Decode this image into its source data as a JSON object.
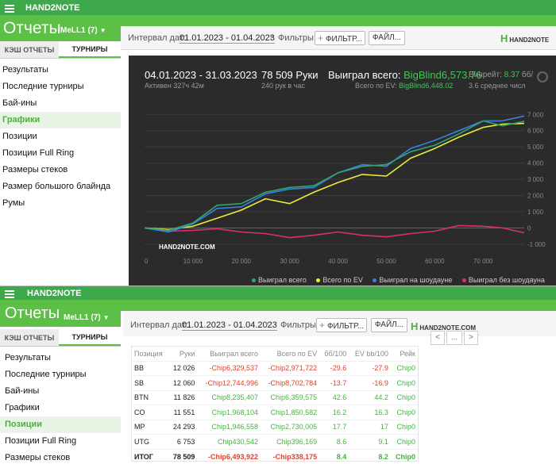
{
  "app_title": "HAND2NOTE",
  "section_title": "Отчеты",
  "profile": "MeLL1 (7)",
  "tabs": [
    "КЭШ ОТЧЕТЫ",
    "ТУРНИРЫ"
  ],
  "nav_items": [
    "Результаты",
    "Последние турниры",
    "Бай-ины",
    "Графики",
    "Позиции",
    "Позиции Full Ring",
    "Размеры стеков",
    "Размер большого блайнда",
    "Румы"
  ],
  "nav_active_top": "Графики",
  "nav_active_bottom": "Позиции",
  "toolbar": {
    "date_label": "Интервал дат:",
    "date_value": "01.01.2023 - 01.04.2023",
    "filters_label": "Фильтры:",
    "filter_btn": "ФИЛЬТР...",
    "filter_btn_short": "ФИЛЬТР...",
    "file_btn": "ФАЙЛ...",
    "logo": "HAND2NOTE",
    "logo_com": "HAND2NOTE.COM"
  },
  "stats": {
    "period": "04.01.2023 - 31.03.2023",
    "active": "Активен 327ч 42м",
    "hands": "78 509 Руки",
    "hands_per_hour": "240 рук в час",
    "won_label": "Выиграл всего:",
    "won_value": "BigBlind6,573.76",
    "ev_label": "Всего по EV:",
    "ev_value": "BigBlind6,448.02",
    "winrate_label": "Винрейт:",
    "winrate_value": "8.37",
    "winrate_suffix": "бб/",
    "avg": "3.6 среднее числ"
  },
  "watermark": "HAND2NOTE.COM",
  "colors": {
    "brand_green": "#5cc046",
    "chart_bg": "#2b2b2b",
    "won": "#2ea66e",
    "ev": "#ecec3a",
    "showdown": "#3d7fe0",
    "nonshowdown": "#d9306a"
  },
  "chart_data": {
    "type": "line",
    "x_ticks": [
      "0",
      "10 000",
      "20 000",
      "30 000",
      "40 000",
      "50 000",
      "60 000",
      "70 000"
    ],
    "y_ticks": [
      "7 000",
      "6 000",
      "5 000",
      "4 000",
      "3 000",
      "2 000",
      "1 000",
      "0",
      "-1 000"
    ],
    "xlim": [
      0,
      78509
    ],
    "ylim": [
      -1400,
      7600
    ],
    "legend": [
      "Выиграл всего",
      "Всего по EV",
      "Выиграл на шоудауне",
      "Выиграл без шоудауна"
    ],
    "series": [
      {
        "name": "Выиграл всего",
        "color": "#2ea66e",
        "x": [
          0,
          5000,
          10000,
          15000,
          20000,
          25000,
          30000,
          35000,
          40000,
          45000,
          50000,
          55000,
          60000,
          65000,
          70000,
          74000,
          78509
        ],
        "values": [
          0,
          -150,
          300,
          1400,
          1500,
          2200,
          2500,
          2600,
          3400,
          3800,
          3900,
          4700,
          5100,
          5800,
          6600,
          6300,
          6574
        ]
      },
      {
        "name": "Всего по EV",
        "color": "#ecec3a",
        "x": [
          0,
          5000,
          10000,
          15000,
          20000,
          25000,
          30000,
          35000,
          40000,
          45000,
          50000,
          55000,
          60000,
          65000,
          70000,
          74000,
          78509
        ],
        "values": [
          0,
          -100,
          100,
          600,
          1100,
          1800,
          1500,
          2200,
          2800,
          3300,
          3200,
          4300,
          4900,
          5600,
          6200,
          6400,
          6448
        ]
      },
      {
        "name": "Выиграл на шоудауне",
        "color": "#3d7fe0",
        "x": [
          0,
          5000,
          10000,
          15000,
          20000,
          25000,
          30000,
          35000,
          40000,
          45000,
          50000,
          55000,
          60000,
          65000,
          70000,
          74000,
          78509
        ],
        "values": [
          0,
          -250,
          250,
          1200,
          1300,
          2100,
          2400,
          2500,
          3400,
          3900,
          3800,
          4900,
          5400,
          6000,
          6600,
          6600,
          6900
        ]
      },
      {
        "name": "Выиграл без шоудауна",
        "color": "#d9306a",
        "x": [
          0,
          5000,
          10000,
          15000,
          20000,
          25000,
          30000,
          35000,
          40000,
          45000,
          50000,
          55000,
          60000,
          65000,
          70000,
          74000,
          78509
        ],
        "values": [
          0,
          -200,
          -150,
          -50,
          -250,
          -350,
          -600,
          -450,
          -250,
          -450,
          -550,
          -350,
          -200,
          150,
          100,
          0,
          -300
        ]
      }
    ]
  },
  "table": {
    "headers": [
      "Позиция",
      "Руки",
      "Выиграл всего",
      "Всего по EV",
      "бб/100",
      "EV bb/100",
      "Рейк"
    ],
    "rows": [
      {
        "pos": "BB",
        "hands": "12 026",
        "won": "-Chip6,329,537",
        "ev": "-Chip2,971,722",
        "bb": "-29.6",
        "evbb": "-27.9",
        "rake": "Chip0",
        "won_neg": true,
        "ev_neg": true
      },
      {
        "pos": "SB",
        "hands": "12 060",
        "won": "-Chip12,744,996",
        "ev": "-Chip8,702,784",
        "bb": "-13.7",
        "evbb": "-16.9",
        "rake": "Chip0",
        "won_neg": true,
        "ev_neg": true
      },
      {
        "pos": "BTN",
        "hands": "11 826",
        "won": "Chip8,235,407",
        "ev": "Chip6,359,575",
        "bb": "42.6",
        "evbb": "44.2",
        "rake": "Chip0",
        "won_neg": false,
        "ev_neg": false
      },
      {
        "pos": "CO",
        "hands": "11 551",
        "won": "Chip1,968,104",
        "ev": "Chip1,850,582",
        "bb": "16.2",
        "evbb": "16.3",
        "rake": "Chip0",
        "won_neg": false,
        "ev_neg": false
      },
      {
        "pos": "MP",
        "hands": "24 293",
        "won": "Chip1,946,558",
        "ev": "Chip2,730,005",
        "bb": "17.7",
        "evbb": "17",
        "rake": "Chip0",
        "won_neg": false,
        "ev_neg": false
      },
      {
        "pos": "UTG",
        "hands": "6 753",
        "won": "Chip430,542",
        "ev": "Chip396,169",
        "bb": "8.6",
        "evbb": "9.1",
        "rake": "Chip0",
        "won_neg": false,
        "ev_neg": false
      },
      {
        "pos": "ИТОГ",
        "hands": "78 509",
        "won": "-Chip6,493,922",
        "ev": "-Chip338,175",
        "bb": "8.4",
        "evbb": "8.2",
        "rake": "Chip0",
        "won_neg": true,
        "ev_neg": true,
        "total": true
      }
    ]
  },
  "pager": {
    "prev": "<",
    "more": "...",
    "next": ">"
  }
}
